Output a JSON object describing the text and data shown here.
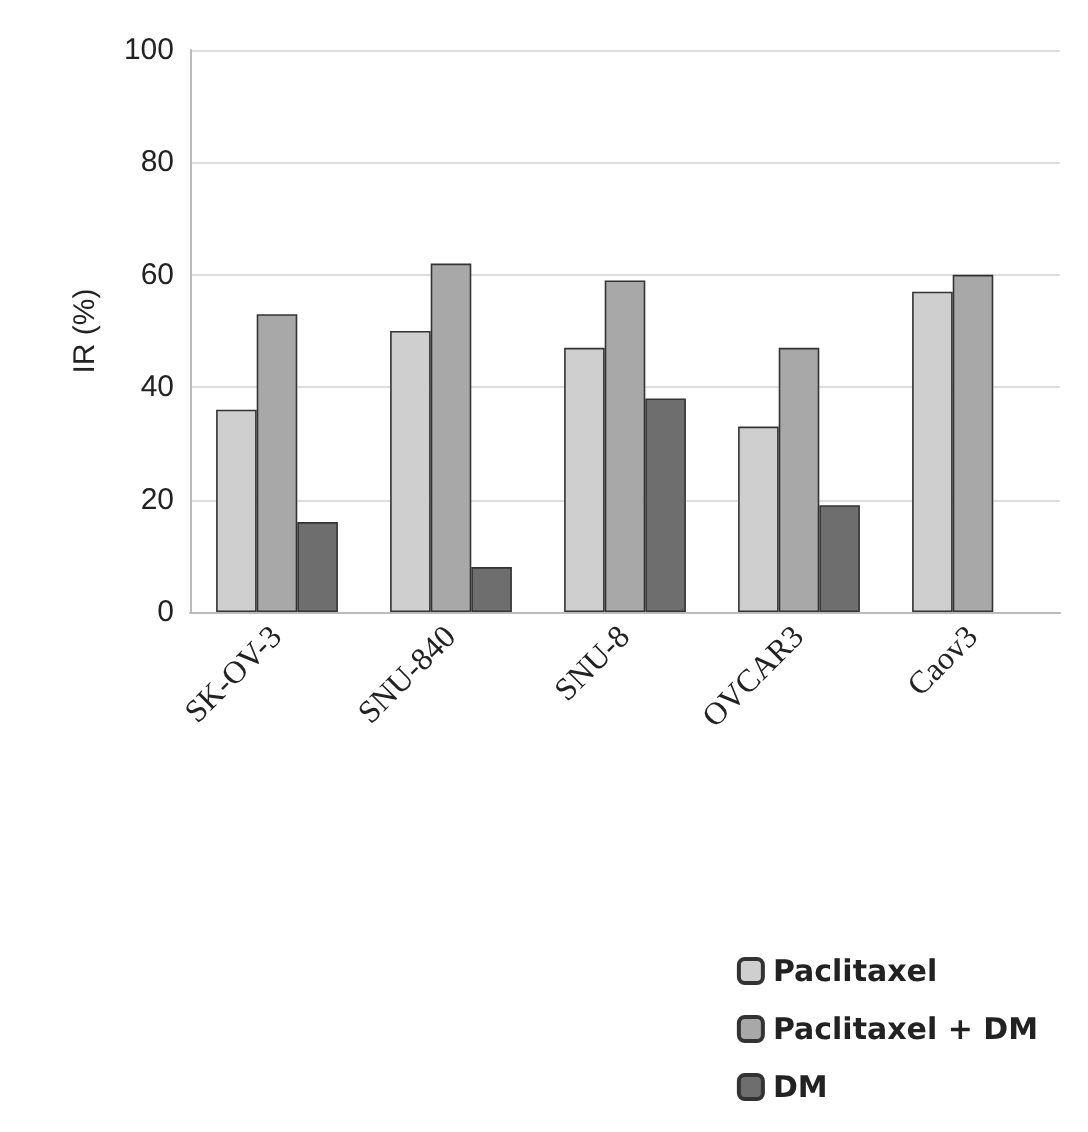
{
  "chart_data": {
    "type": "bar",
    "ylabel": "IR (%)",
    "categories": [
      "SK-OV-3",
      "SNU-840",
      "SNU-8",
      "OVCAR3",
      "Caov3"
    ],
    "series": [
      {
        "name": "Paclitaxel",
        "color": "#cfcfcf",
        "values": [
          36,
          50,
          47,
          33,
          57
        ]
      },
      {
        "name": "Paclitaxel + DM",
        "color": "#a8a8a8",
        "values": [
          53,
          62,
          59,
          47,
          60
        ]
      },
      {
        "name": "DM",
        "color": "#6e6e6e",
        "values": [
          16,
          8,
          38,
          19,
          null
        ]
      }
    ],
    "ylim": [
      0,
      100
    ],
    "yticks": [
      0,
      20,
      40,
      60,
      80,
      100
    ],
    "grid": "y",
    "legend": "bottom right"
  }
}
